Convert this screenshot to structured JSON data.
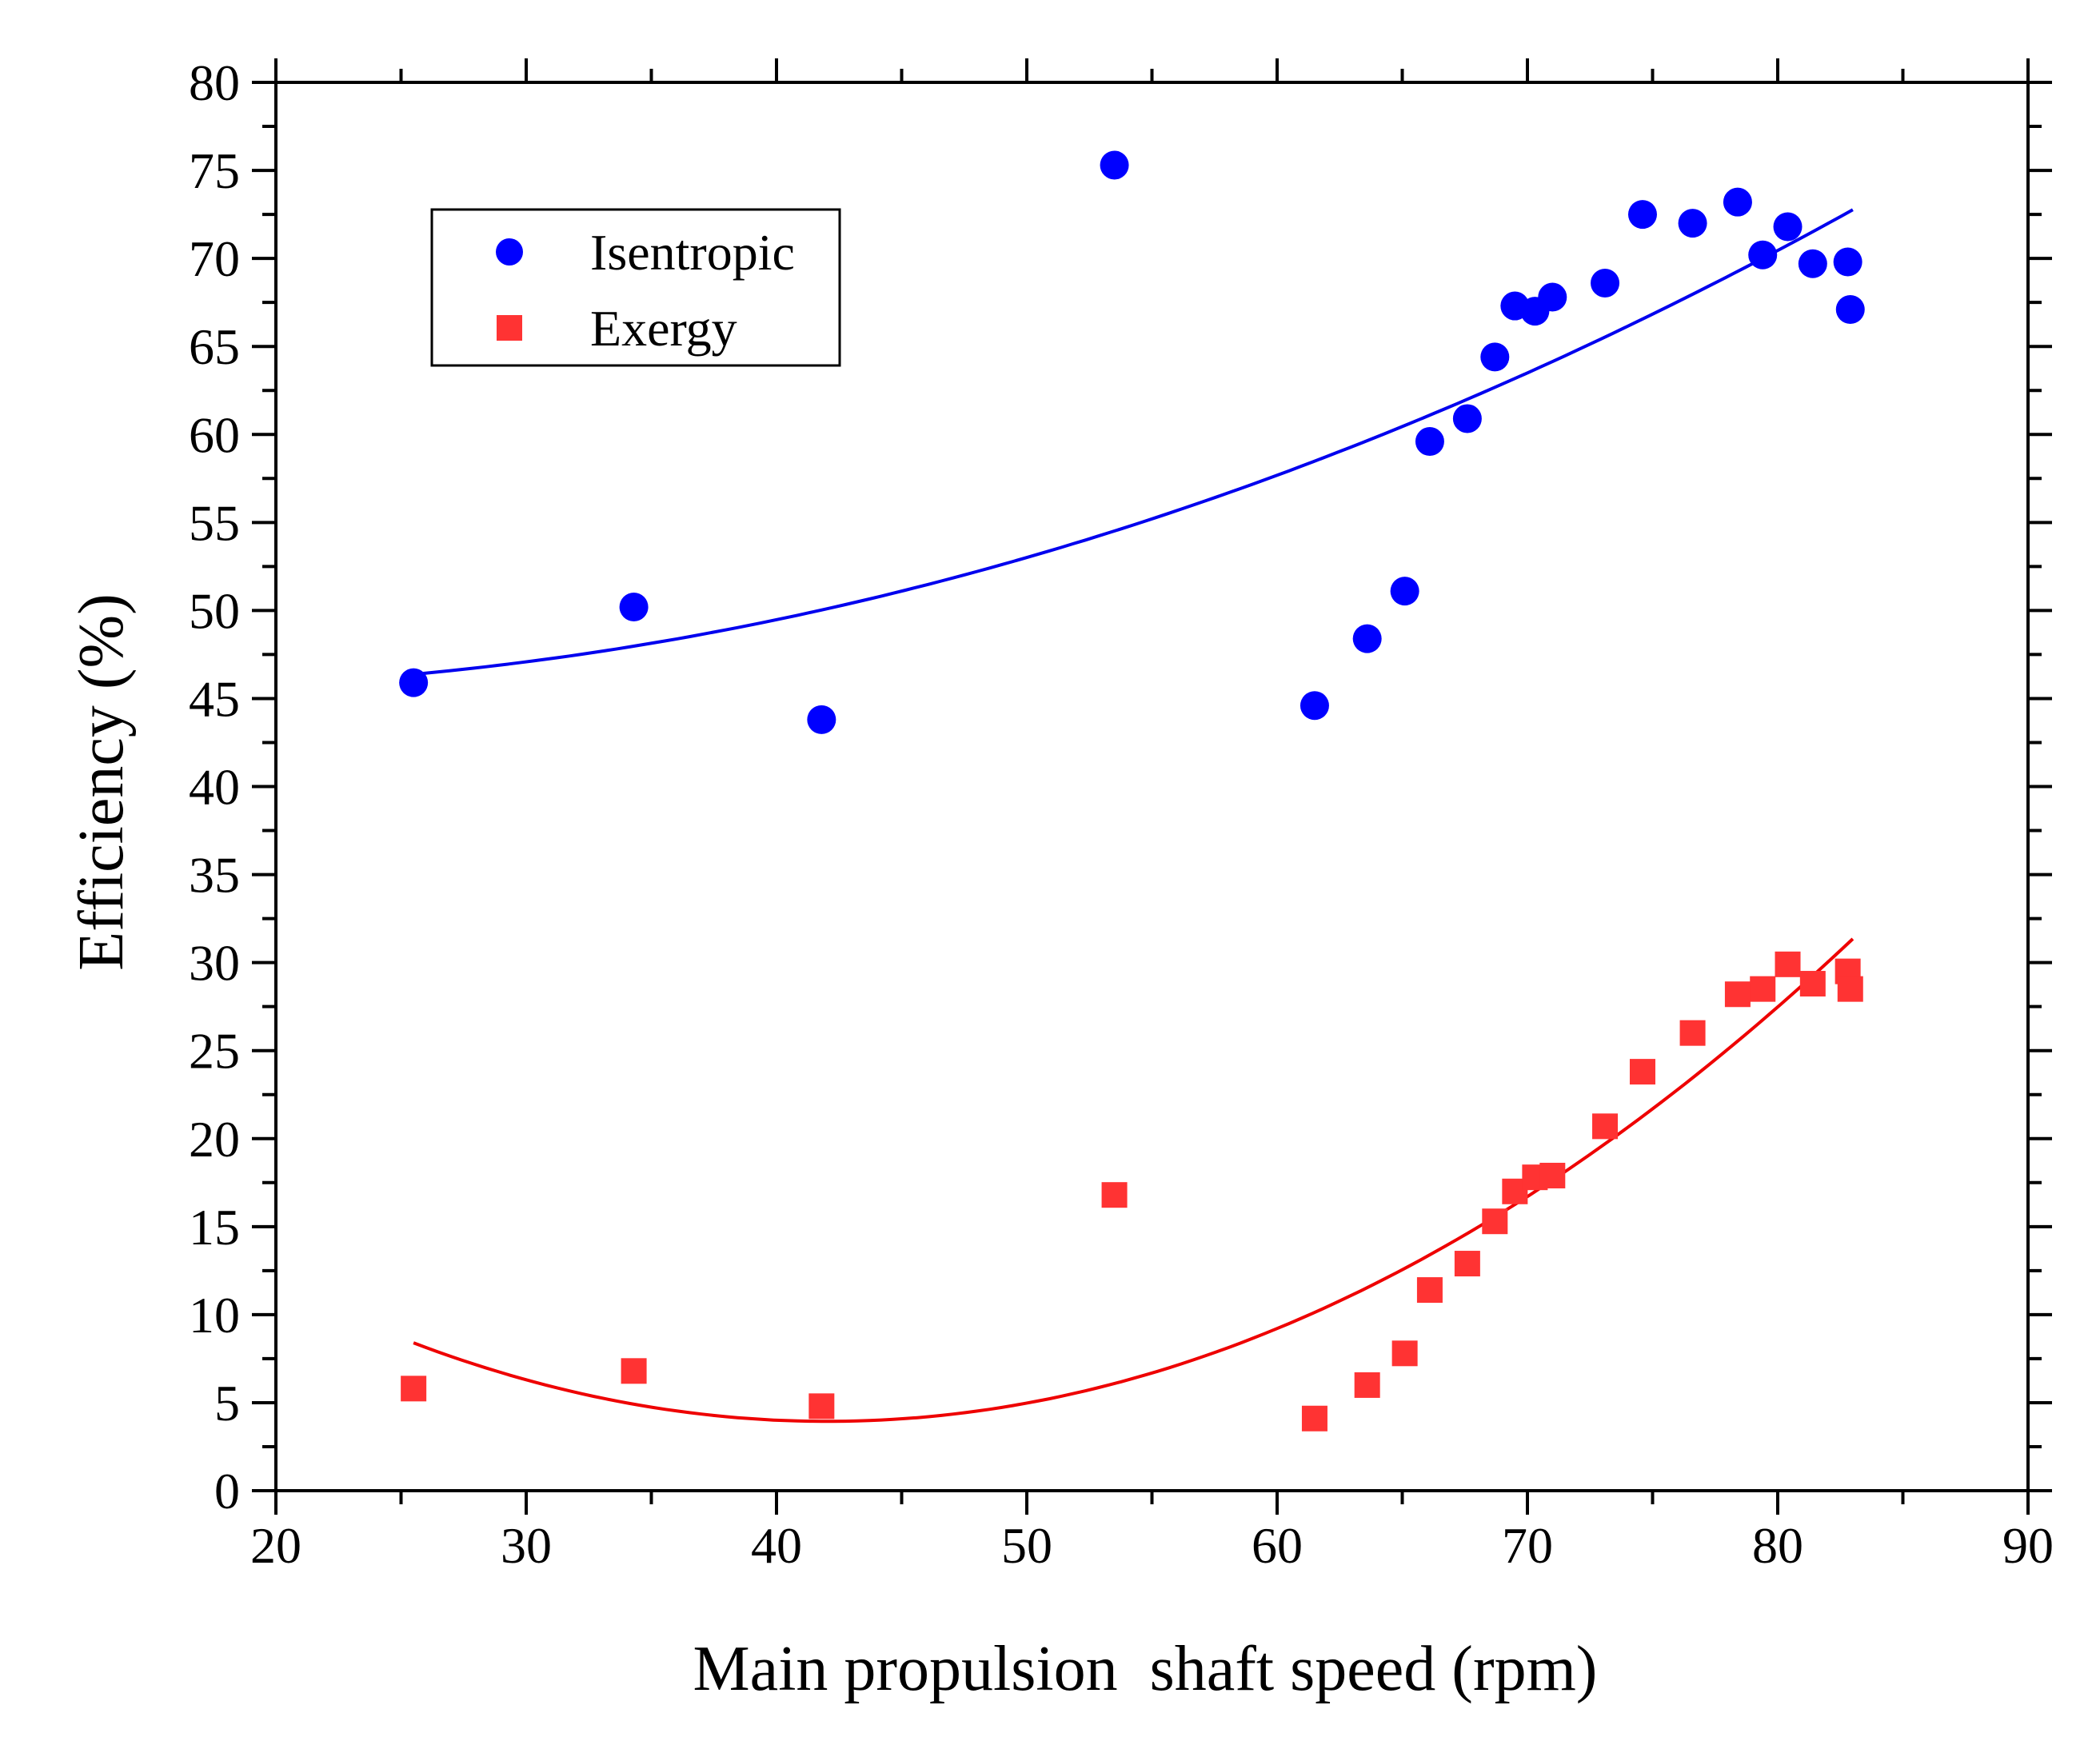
{
  "chart_data": {
    "type": "scatter",
    "title": "",
    "xlabel": "Main propulsion  shaft speed (rpm)",
    "ylabel": "Efficiency (%)",
    "xlim": [
      20,
      90
    ],
    "ylim": [
      0,
      80
    ],
    "x_ticks": [
      20,
      30,
      40,
      50,
      60,
      70,
      80,
      90
    ],
    "y_ticks": [
      0,
      5,
      10,
      15,
      20,
      25,
      30,
      35,
      40,
      45,
      50,
      55,
      60,
      65,
      70,
      75,
      80
    ],
    "grid": false,
    "legend_position": "top-left",
    "series": [
      {
        "name": "Isentropic",
        "marker": "circle",
        "color": "#0000ff",
        "fit_color": "#0000ee",
        "fit": "quadratic",
        "fit_range": [
          25.5,
          83.0
        ],
        "points": [
          [
            25.5,
            45.9
          ],
          [
            34.3,
            50.2
          ],
          [
            41.8,
            43.8
          ],
          [
            53.5,
            75.3
          ],
          [
            61.5,
            44.6
          ],
          [
            63.6,
            48.4
          ],
          [
            65.1,
            51.1
          ],
          [
            66.1,
            59.6
          ],
          [
            67.6,
            60.9
          ],
          [
            68.7,
            64.4
          ],
          [
            69.5,
            67.3
          ],
          [
            70.3,
            67.0
          ],
          [
            71.0,
            67.8
          ],
          [
            73.1,
            68.6
          ],
          [
            74.6,
            72.5
          ],
          [
            76.6,
            72.0
          ],
          [
            78.4,
            73.2
          ],
          [
            79.4,
            70.2
          ],
          [
            80.4,
            71.8
          ],
          [
            81.4,
            69.7
          ],
          [
            82.8,
            69.8
          ],
          [
            82.9,
            67.1
          ]
        ]
      },
      {
        "name": "Exergy",
        "marker": "square",
        "color": "#ff3333",
        "fit_color": "#ee0000",
        "fit": "quadratic",
        "fit_range": [
          25.5,
          83.0
        ],
        "points": [
          [
            25.5,
            5.8
          ],
          [
            34.3,
            6.8
          ],
          [
            41.8,
            4.8
          ],
          [
            53.5,
            16.8
          ],
          [
            61.5,
            4.1
          ],
          [
            63.6,
            6.0
          ],
          [
            65.1,
            7.8
          ],
          [
            66.1,
            11.4
          ],
          [
            67.6,
            12.9
          ],
          [
            68.7,
            15.3
          ],
          [
            69.5,
            17.0
          ],
          [
            70.3,
            17.8
          ],
          [
            71.0,
            17.9
          ],
          [
            73.1,
            20.7
          ],
          [
            74.6,
            23.8
          ],
          [
            76.6,
            26.0
          ],
          [
            78.4,
            28.2
          ],
          [
            79.4,
            28.5
          ],
          [
            80.4,
            29.9
          ],
          [
            81.4,
            28.8
          ],
          [
            82.8,
            29.5
          ],
          [
            82.9,
            28.5
          ]
        ]
      }
    ]
  }
}
